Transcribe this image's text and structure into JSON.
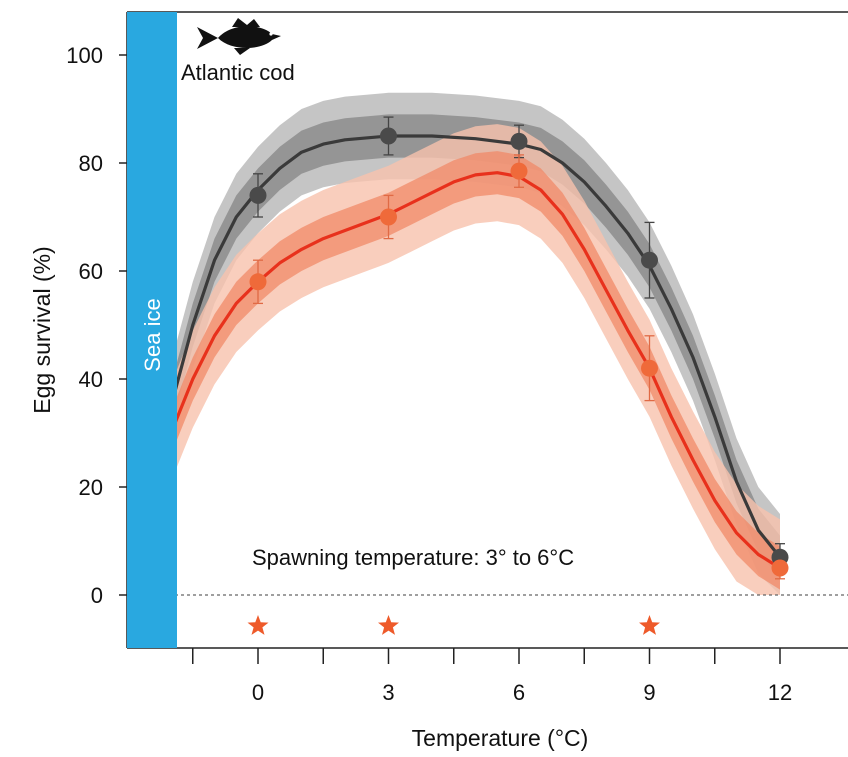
{
  "chart_data": {
    "type": "line",
    "title": "",
    "xlabel": "Temperature (°C)",
    "ylabel": "Egg survival (%)",
    "xlim": [
      -2.5,
      12.4
    ],
    "ylim": [
      -10,
      108
    ],
    "x_ticks": [
      0,
      3,
      6,
      9,
      12
    ],
    "y_ticks": [
      0,
      20,
      40,
      60,
      80,
      100
    ],
    "grid": false,
    "species_label": "Atlantic cod",
    "sea_ice_label": "Sea ice",
    "annotation": "Spawning temperature: 3° to 6°C",
    "colors": {
      "black_series": "#3a3a3a",
      "red_series": "#e8311c",
      "sea_ice": "#29a8e0",
      "star": "#ee5a2a"
    },
    "stars_at_x": [
      0,
      3,
      9
    ],
    "series": [
      {
        "points": [
          {
            "x": 0,
            "y": 74,
            "err": 4
          },
          {
            "x": 3,
            "y": 85,
            "err": 3.5
          },
          {
            "x": 6,
            "y": 84,
            "err": 3
          },
          {
            "x": 9,
            "y": 62,
            "err": 7
          },
          {
            "x": 12,
            "y": 7,
            "err": 2.5
          }
        ],
        "fit": [
          [
            -1.9,
            38
          ],
          [
            -1.5,
            50
          ],
          [
            -1,
            62
          ],
          [
            -0.5,
            70
          ],
          [
            0,
            75
          ],
          [
            0.5,
            79
          ],
          [
            1,
            82
          ],
          [
            1.5,
            83.5
          ],
          [
            2,
            84.3
          ],
          [
            3,
            85
          ],
          [
            4,
            85
          ],
          [
            5,
            84.5
          ],
          [
            6,
            83.5
          ],
          [
            6.5,
            82.5
          ],
          [
            7,
            80
          ],
          [
            7.5,
            76.5
          ],
          [
            8,
            72
          ],
          [
            8.5,
            67
          ],
          [
            9,
            61
          ],
          [
            9.5,
            53
          ],
          [
            10,
            44
          ],
          [
            10.5,
            33
          ],
          [
            11,
            21
          ],
          [
            11.5,
            12
          ],
          [
            12,
            7
          ]
        ],
        "inner_band": 4,
        "outer_band": 8
      },
      {
        "points": [
          {
            "x": 0,
            "y": 58,
            "err": 4
          },
          {
            "x": 3,
            "y": 70,
            "err": 4
          },
          {
            "x": 6,
            "y": 78.5,
            "err": 3
          },
          {
            "x": 9,
            "y": 42,
            "err": 6
          },
          {
            "x": 12,
            "y": 5,
            "err": 2
          }
        ],
        "fit": [
          [
            -1.9,
            32
          ],
          [
            -1.5,
            40
          ],
          [
            -1,
            48
          ],
          [
            -0.5,
            54
          ],
          [
            0,
            58
          ],
          [
            0.5,
            61.5
          ],
          [
            1,
            64
          ],
          [
            1.5,
            66
          ],
          [
            2,
            67.5
          ],
          [
            2.5,
            69
          ],
          [
            3,
            70.5
          ],
          [
            3.5,
            72.5
          ],
          [
            4,
            74.5
          ],
          [
            4.5,
            76.5
          ],
          [
            5,
            77.8
          ],
          [
            5.5,
            78.2
          ],
          [
            6,
            77.5
          ],
          [
            6.5,
            75
          ],
          [
            7,
            70.5
          ],
          [
            7.5,
            64
          ],
          [
            8,
            56.5
          ],
          [
            8.5,
            49
          ],
          [
            9,
            42
          ],
          [
            9.5,
            33
          ],
          [
            10,
            25
          ],
          [
            10.5,
            17.5
          ],
          [
            11,
            11.5
          ],
          [
            11.5,
            7.5
          ],
          [
            12,
            5
          ]
        ],
        "inner_band": 4,
        "outer_band": 9
      }
    ]
  }
}
